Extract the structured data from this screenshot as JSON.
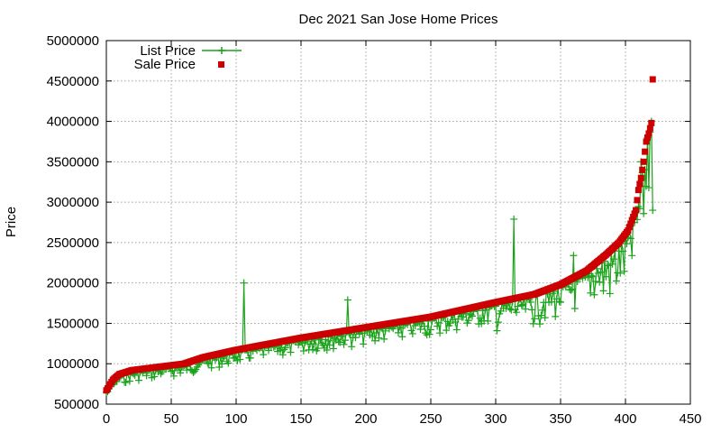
{
  "chart_data": {
    "type": "line",
    "title": "Dec 2021 San Jose Home Prices",
    "xlabel": "",
    "ylabel": "Price",
    "xlim": [
      0,
      450
    ],
    "ylim": [
      500000,
      5000000
    ],
    "x_ticks": [
      0,
      50,
      100,
      150,
      200,
      250,
      300,
      350,
      400,
      450
    ],
    "y_ticks": [
      500000,
      1000000,
      1500000,
      2000000,
      2500000,
      3000000,
      3500000,
      4000000,
      4500000,
      5000000
    ],
    "grid": true,
    "legend_position": "top-left",
    "colors": {
      "list": "#1aa31a",
      "sale": "#cc0000"
    },
    "n": 422,
    "series": [
      {
        "name": "Sale Price",
        "style": "square-markers",
        "anchors": [
          [
            0,
            670000
          ],
          [
            2,
            720000
          ],
          [
            5,
            800000
          ],
          [
            10,
            870000
          ],
          [
            20,
            920000
          ],
          [
            40,
            960000
          ],
          [
            60,
            1000000
          ],
          [
            75,
            1080000
          ],
          [
            100,
            1170000
          ],
          [
            150,
            1320000
          ],
          [
            200,
            1450000
          ],
          [
            250,
            1580000
          ],
          [
            300,
            1760000
          ],
          [
            330,
            1860000
          ],
          [
            350,
            1980000
          ],
          [
            370,
            2150000
          ],
          [
            385,
            2350000
          ],
          [
            395,
            2500000
          ],
          [
            402,
            2650000
          ],
          [
            408,
            2900000
          ],
          [
            410,
            3150000
          ],
          [
            412,
            3300000
          ],
          [
            414,
            3500000
          ],
          [
            416,
            3750000
          ],
          [
            418,
            3850000
          ],
          [
            420,
            3980000
          ],
          [
            421,
            4520000
          ]
        ]
      },
      {
        "name": "List Price",
        "style": "line-with-plus-markers",
        "spikes": [
          [
            106,
            2000000
          ],
          [
            186,
            1790000
          ],
          [
            314,
            2790000
          ],
          [
            360,
            2340000
          ],
          [
            379,
            2120000
          ],
          [
            406,
            2820000
          ],
          [
            412,
            3500000
          ],
          [
            417,
            3800000
          ],
          [
            420,
            4000000
          ],
          [
            421,
            2900000
          ]
        ]
      }
    ]
  }
}
